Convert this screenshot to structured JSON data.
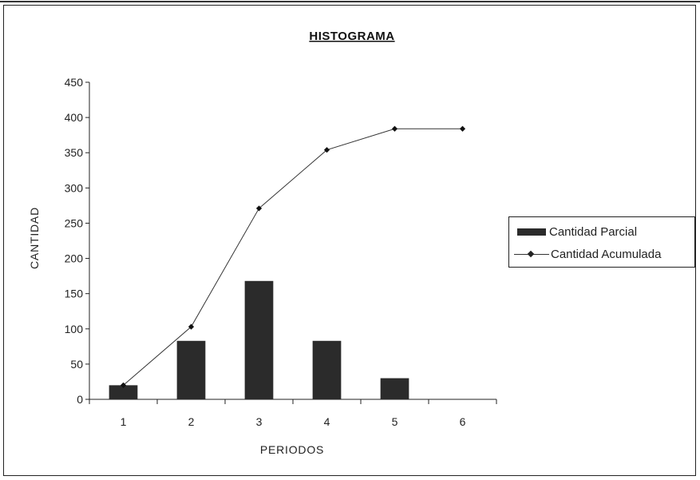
{
  "chart_data": {
    "type": "bar",
    "title": "HISTOGRAMA",
    "xlabel": "PERIODOS",
    "ylabel": "CANTIDAD",
    "categories": [
      "1",
      "2",
      "3",
      "4",
      "5",
      "6"
    ],
    "ylim": [
      0,
      450
    ],
    "yticks": [
      "0",
      "50",
      "100",
      "150",
      "200",
      "250",
      "300",
      "350",
      "400",
      "450"
    ],
    "grid": false,
    "legend_position": "right",
    "series": [
      {
        "name": "Cantidad Parcial",
        "type": "bar",
        "values": [
          20,
          83,
          168,
          83,
          30,
          0
        ],
        "color": "#2b2b2b"
      },
      {
        "name": "Cantidad Acumulada",
        "type": "line",
        "values": [
          20,
          103,
          271,
          354,
          384,
          384
        ],
        "color": "#333333",
        "marker": "diamond"
      }
    ]
  }
}
